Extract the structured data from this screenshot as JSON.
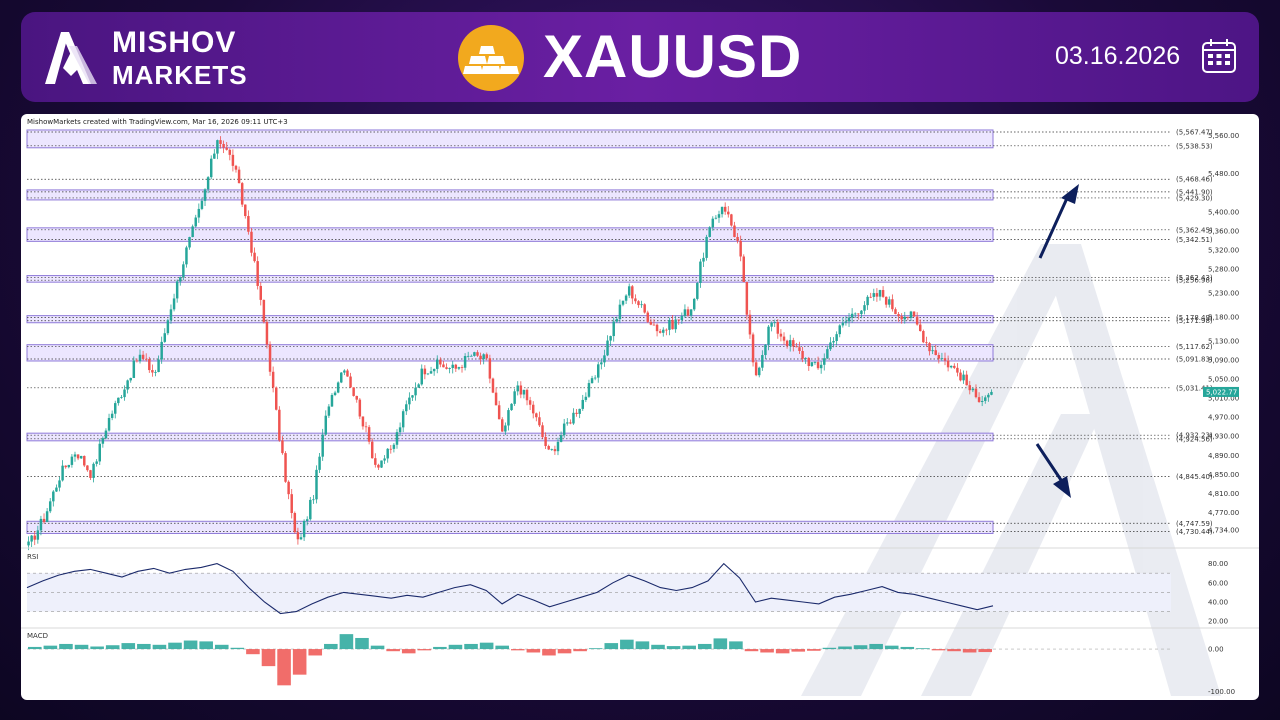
{
  "header": {
    "brand_line1": "MISHOV",
    "brand_line2": "MARKETS",
    "symbol": "XAUUSD",
    "date": "03.16.2026"
  },
  "chart_meta": {
    "credit": "MishowMarkets created with TradingView.com, Mar 16, 2026 09:11 UTC+3",
    "rsi_label": "RSI",
    "macd_label": "MACD"
  },
  "icons": {
    "brand_logo": "mishov-logo-icon",
    "asset": "gold-bars-icon",
    "calendar": "calendar-icon",
    "arrow_up": "arrow-up-right-icon",
    "arrow_down": "arrow-down-right-icon"
  },
  "colors": {
    "bull": "#26a69a",
    "bear": "#ef5350",
    "zone_fill": "#ece6ff",
    "zone_border": "#8f7ad9",
    "rsi_line": "#1b2a6b",
    "arrow": "#0d1f5c",
    "gold": "#f2a91e"
  },
  "chart_data": [
    {
      "type": "candlestick",
      "title": "",
      "ylim": [
        4700,
        5580
      ],
      "y_ticks": [
        "5,560.00",
        "5,480.00",
        "5,400.00",
        "5,360.00",
        "5,320.00",
        "5,280.00",
        "5,230.00",
        "5,180.00",
        "5,130.00",
        "5,090.00",
        "5,050.00",
        "5,010.00",
        "4,970.00",
        "4,930.00",
        "4,890.00",
        "4,850.00",
        "4,810.00",
        "4,770.00",
        "4,734.00"
      ],
      "y_tick_values": [
        5560,
        5480,
        5400,
        5360,
        5320,
        5280,
        5230,
        5180,
        5130,
        5090,
        5050,
        5010,
        4970,
        4930,
        4890,
        4850,
        4810,
        4770,
        4734
      ],
      "close_path": [
        4700,
        4760,
        4850,
        4900,
        4850,
        4960,
        5030,
        5100,
        5060,
        5200,
        5320,
        5420,
        5560,
        5500,
        5350,
        5150,
        4900,
        4700,
        4800,
        5000,
        5080,
        4980,
        4870,
        4900,
        5000,
        5070,
        5080,
        5070,
        5100,
        5090,
        4930,
        5040,
        4980,
        4890,
        4950,
        5000,
        5060,
        5160,
        5240,
        5190,
        5150,
        5170,
        5200,
        5350,
        5420,
        5330,
        5050,
        5170,
        5130,
        5100,
        5070,
        5140,
        5180,
        5210,
        5230,
        5190,
        5180,
        5120,
        5090,
        5060,
        5010,
        5022
      ],
      "levels": [
        {
          "label": "(5,567.47)",
          "value": 5567.47
        },
        {
          "label": "(5,538.53)",
          "value": 5538.53
        },
        {
          "label": "(5,468.46)",
          "value": 5468.46
        },
        {
          "label": "(5,441.90)",
          "value": 5441.9
        },
        {
          "label": "(5,429.30)",
          "value": 5429.3
        },
        {
          "label": "(5,362.45)",
          "value": 5362.45
        },
        {
          "label": "(5,342.51)",
          "value": 5342.51
        },
        {
          "label": "(5,262.43)",
          "value": 5262.43
        },
        {
          "label": "(5,256.98)",
          "value": 5256.98
        },
        {
          "label": "(5,178.49)",
          "value": 5178.49
        },
        {
          "label": "(5,171.98)",
          "value": 5171.98
        },
        {
          "label": "(5,117.62)",
          "value": 5117.62
        },
        {
          "label": "(5,091.83)",
          "value": 5091.83
        },
        {
          "label": "(5,031.41)",
          "value": 5031.41
        },
        {
          "label": "(4,932.23)",
          "value": 4932.23
        },
        {
          "label": "(4,924.56)",
          "value": 4924.56
        },
        {
          "label": "(4,845.40)",
          "value": 4845.4
        },
        {
          "label": "(4,747.59)",
          "value": 4747.59
        },
        {
          "label": "(4,730.44)",
          "value": 4730.44
        }
      ],
      "zones": [
        [
          5538.53,
          5567.47
        ],
        [
          5429.3,
          5441.9
        ],
        [
          5342.51,
          5362.45
        ],
        [
          5256.98,
          5262.43
        ],
        [
          5171.98,
          5178.49
        ],
        [
          5091.83,
          5117.62
        ],
        [
          4924.56,
          4932.23
        ],
        [
          4730.44,
          4747.59
        ]
      ],
      "current_price": {
        "label": "5,022.77",
        "value": 5022.77
      }
    },
    {
      "type": "line",
      "name": "RSI",
      "ylim": [
        15,
        90
      ],
      "y_ticks": [
        "80.00",
        "60.00",
        "40.00",
        "20.00"
      ],
      "y_tick_values": [
        80,
        60,
        40,
        20
      ],
      "band": [
        30,
        70
      ],
      "values": [
        55,
        62,
        68,
        72,
        74,
        70,
        66,
        72,
        75,
        70,
        74,
        76,
        80,
        72,
        55,
        40,
        28,
        30,
        38,
        45,
        50,
        48,
        46,
        44,
        47,
        45,
        50,
        55,
        58,
        52,
        38,
        48,
        42,
        35,
        40,
        45,
        50,
        60,
        68,
        62,
        55,
        52,
        55,
        62,
        80,
        65,
        40,
        44,
        42,
        40,
        38,
        45,
        48,
        52,
        56,
        50,
        48,
        44,
        40,
        36,
        32,
        36
      ]
    },
    {
      "type": "bar",
      "name": "MACD",
      "ylim": [
        -110,
        40
      ],
      "y_ticks": [
        "0.00",
        "-100.00"
      ],
      "y_tick_values": [
        0,
        -100
      ],
      "values": [
        5,
        8,
        12,
        10,
        6,
        9,
        14,
        12,
        10,
        15,
        20,
        18,
        10,
        3,
        -12,
        -40,
        -85,
        -60,
        -15,
        12,
        35,
        26,
        8,
        -5,
        -10,
        -3,
        5,
        10,
        12,
        15,
        8,
        -3,
        -8,
        -15,
        -10,
        -5,
        2,
        14,
        22,
        18,
        10,
        7,
        8,
        12,
        25,
        18,
        -5,
        -8,
        -10,
        -6,
        -4,
        3,
        6,
        9,
        12,
        8,
        5,
        2,
        -3,
        -5,
        -8,
        -7
      ]
    }
  ]
}
